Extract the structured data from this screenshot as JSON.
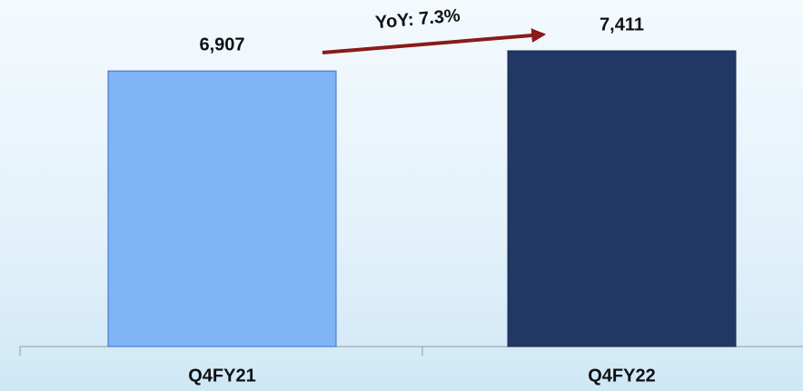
{
  "chart_data": {
    "type": "bar",
    "categories": [
      "Q4FY21",
      "Q4FY22"
    ],
    "values": [
      6907,
      7411
    ],
    "value_labels": [
      "6,907",
      "7,411"
    ],
    "colors": [
      "#7fb3f6",
      "#213864"
    ],
    "annotation": "YoY: 7.3%"
  }
}
